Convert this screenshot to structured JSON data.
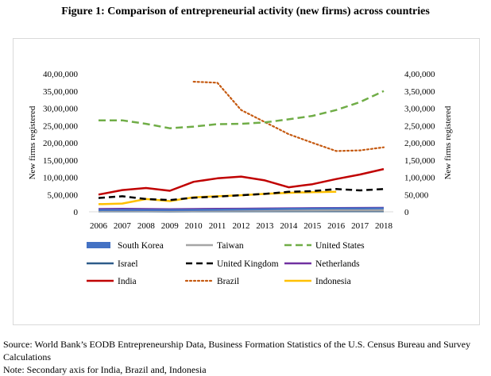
{
  "figure_title": "Figure 1: Comparison of entrepreneurial activity (new firms) across countries",
  "source_text": "Source: World Bank’s EODB Entrepreneurship Data, Business Formation Statistics of the U.S. Census Bureau and Survey Calculations",
  "note_text": "Note: Secondary axis for India, Brazil and, Indonesia",
  "colors": {
    "south_korea": "#4472C4",
    "taiwan": "#A5A5A5",
    "united_states": "#70AD47",
    "israel": "#2E5C8A",
    "united_kingdom": "#000000",
    "netherlands": "#7030A0",
    "india": "#C00000",
    "brazil": "#C55A11",
    "indonesia": "#FFC000",
    "frame": "#d9d9d9"
  },
  "chart_data": {
    "type": "line",
    "title": "Figure 1: Comparison of entrepreneurial activity (new firms) across countries",
    "xlabel": "",
    "ylabel": "New firms registered",
    "y2label": "New firms registered",
    "x": [
      "2006",
      "2007",
      "2008",
      "2009",
      "2010",
      "2011",
      "2012",
      "2013",
      "2014",
      "2015",
      "2016",
      "2017",
      "2018"
    ],
    "ylim": [
      0,
      4000000
    ],
    "y2lim": [
      0,
      400000
    ],
    "yticks": [
      "0",
      "5,00,000",
      "10,00,000",
      "15,00,000",
      "20,00,000",
      "25,00,000",
      "30,00,000",
      "35,00,000",
      "40,00,000"
    ],
    "y2ticks": [
      "0",
      "50,000",
      "1,00,000",
      "1,50,000",
      "2,00,000",
      "2,50,000",
      "3,00,000",
      "3,50,000",
      "4,00,000"
    ],
    "grid": false,
    "legend_position": "bottom",
    "series": [
      {
        "name": "South Korea",
        "axis": "primary",
        "style": "bar",
        "color_key": "south_korea",
        "values": [
          50000,
          55000,
          52000,
          53000,
          56000,
          60000,
          68000,
          75000,
          84000,
          93000,
          97000,
          98000,
          102000
        ]
      },
      {
        "name": "Taiwan",
        "axis": "primary",
        "style": "solid",
        "color_key": "taiwan",
        "values": [
          30000,
          32000,
          30000,
          28000,
          30000,
          32000,
          34000,
          34000,
          36000,
          36000,
          38000,
          38000,
          40000
        ]
      },
      {
        "name": "United States",
        "axis": "primary",
        "style": "dashed-long",
        "color_key": "united_states",
        "values": [
          2650000,
          2650000,
          2550000,
          2420000,
          2470000,
          2540000,
          2550000,
          2590000,
          2680000,
          2780000,
          2950000,
          3180000,
          3500000
        ]
      },
      {
        "name": "Israel",
        "axis": "primary",
        "style": "solid",
        "color_key": "israel",
        "values": [
          15000,
          16000,
          15000,
          14000,
          15000,
          15000,
          16000,
          16000,
          17000,
          17000,
          18000,
          18000,
          19000
        ]
      },
      {
        "name": "United Kingdom",
        "axis": "primary",
        "style": "dashed",
        "color_key": "united_kingdom",
        "values": [
          400000,
          450000,
          370000,
          340000,
          410000,
          440000,
          480000,
          520000,
          580000,
          600000,
          660000,
          620000,
          660000
        ]
      },
      {
        "name": "Netherlands",
        "axis": "primary",
        "style": "solid",
        "color_key": "netherlands",
        "values": [
          80000,
          85000,
          80000,
          75000,
          80000,
          85000,
          90000,
          95000,
          100000,
          105000,
          110000,
          112000,
          115000
        ]
      },
      {
        "name": "India",
        "axis": "secondary",
        "style": "solid",
        "color_key": "india",
        "values": [
          50000,
          63000,
          69000,
          61000,
          87000,
          97000,
          102000,
          91000,
          71000,
          80000,
          95000,
          108000,
          124000
        ]
      },
      {
        "name": "Brazil",
        "axis": "secondary",
        "style": "dotted",
        "color_key": "brazil",
        "values": [
          null,
          null,
          null,
          null,
          377000,
          374000,
          295000,
          260000,
          225000,
          200000,
          176000,
          178000,
          187000
        ]
      },
      {
        "name": "Indonesia",
        "axis": "secondary",
        "style": "solid",
        "color_key": "indonesia",
        "values": [
          22000,
          24000,
          37000,
          31000,
          42000,
          45000,
          48000,
          52000,
          55000,
          57000,
          58000,
          null,
          null
        ]
      }
    ],
    "legend_order": [
      "South Korea",
      "Taiwan",
      "United States",
      "Israel",
      "United Kingdom",
      "Netherlands",
      "India",
      "Brazil",
      "Indonesia"
    ]
  }
}
